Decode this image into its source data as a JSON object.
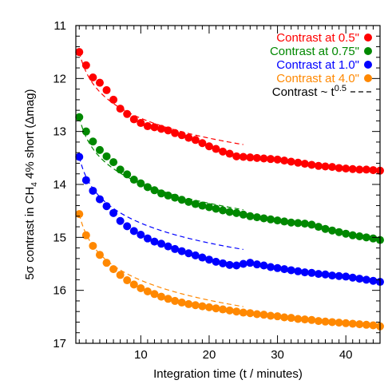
{
  "chart_data": {
    "type": "scatter",
    "title": "",
    "xlabel": "Integration time (t / minutes)",
    "ylabel": {
      "prefix": "5σ contrast in CH",
      "subscript": "4",
      "suffix": " 4% short (Δmag)"
    },
    "xlim": [
      0.5,
      45
    ],
    "ylim": [
      11,
      17
    ],
    "y_inverted": true,
    "x_ticks": [
      10,
      20,
      30,
      40
    ],
    "y_ticks": [
      11,
      12,
      13,
      14,
      15,
      16,
      17
    ],
    "legend_placement": "top-right",
    "x": [
      1,
      2,
      3,
      4,
      5,
      6,
      7,
      8,
      9,
      10,
      11,
      12,
      13,
      14,
      15,
      16,
      17,
      18,
      19,
      20,
      21,
      22,
      23,
      24,
      25,
      26,
      27,
      28,
      29,
      30,
      31,
      32,
      33,
      34,
      35,
      36,
      37,
      38,
      39,
      40,
      41,
      42,
      43,
      44,
      45
    ],
    "series": [
      {
        "name": "Contrast at 0.5\"",
        "color": "#ff0000",
        "values": [
          11.5,
          11.75,
          11.98,
          12.08,
          12.22,
          12.4,
          12.57,
          12.67,
          12.77,
          12.84,
          12.9,
          12.92,
          12.95,
          12.98,
          13.03,
          13.07,
          13.12,
          13.16,
          13.22,
          13.28,
          13.33,
          13.38,
          13.42,
          13.47,
          13.48,
          13.49,
          13.5,
          13.51,
          13.52,
          13.53,
          13.55,
          13.57,
          13.59,
          13.61,
          13.63,
          13.65,
          13.66,
          13.67,
          13.69,
          13.7,
          13.71,
          13.72,
          13.72,
          13.73,
          13.74
        ]
      },
      {
        "name": "Contrast at 0.75\"",
        "color": "#008800",
        "values": [
          12.73,
          13.0,
          13.19,
          13.35,
          13.47,
          13.58,
          13.72,
          13.81,
          13.91,
          13.98,
          14.05,
          14.11,
          14.17,
          14.21,
          14.25,
          14.29,
          14.33,
          14.37,
          14.4,
          14.43,
          14.46,
          14.49,
          14.52,
          14.54,
          14.57,
          14.6,
          14.62,
          14.64,
          14.66,
          14.68,
          14.7,
          14.72,
          14.73,
          14.74,
          14.76,
          14.8,
          14.84,
          14.87,
          14.9,
          14.93,
          14.96,
          14.98,
          15.0,
          15.02,
          15.05
        ]
      },
      {
        "name": "Contrast at 1.0\"",
        "color": "#0000ff",
        "values": [
          13.48,
          13.92,
          14.12,
          14.28,
          14.41,
          14.54,
          14.69,
          14.79,
          14.88,
          14.95,
          15.02,
          15.08,
          15.12,
          15.17,
          15.22,
          15.26,
          15.3,
          15.34,
          15.38,
          15.42,
          15.46,
          15.49,
          15.52,
          15.53,
          15.5,
          15.48,
          15.51,
          15.53,
          15.56,
          15.58,
          15.6,
          15.62,
          15.64,
          15.66,
          15.67,
          15.69,
          15.7,
          15.72,
          15.73,
          15.74,
          15.76,
          15.78,
          15.8,
          15.82,
          15.84
        ]
      },
      {
        "name": "Contrast at 4.0\"",
        "color": "#ff8800",
        "values": [
          14.56,
          14.96,
          15.16,
          15.33,
          15.48,
          15.6,
          15.71,
          15.81,
          15.89,
          15.96,
          16.02,
          16.07,
          16.12,
          16.16,
          16.2,
          16.23,
          16.26,
          16.28,
          16.3,
          16.32,
          16.34,
          16.36,
          16.38,
          16.4,
          16.42,
          16.43,
          16.45,
          16.46,
          16.48,
          16.49,
          16.51,
          16.52,
          16.54,
          16.55,
          16.56,
          16.58,
          16.59,
          16.6,
          16.61,
          16.62,
          16.63,
          16.64,
          16.65,
          16.66,
          16.68
        ]
      }
    ],
    "reference": {
      "name": "Contrast ~ t",
      "name_superscript": "0.5",
      "color": "#000000",
      "style": "dashed",
      "exponent": 0.5,
      "x_start": 1,
      "x_end": 25
    }
  }
}
